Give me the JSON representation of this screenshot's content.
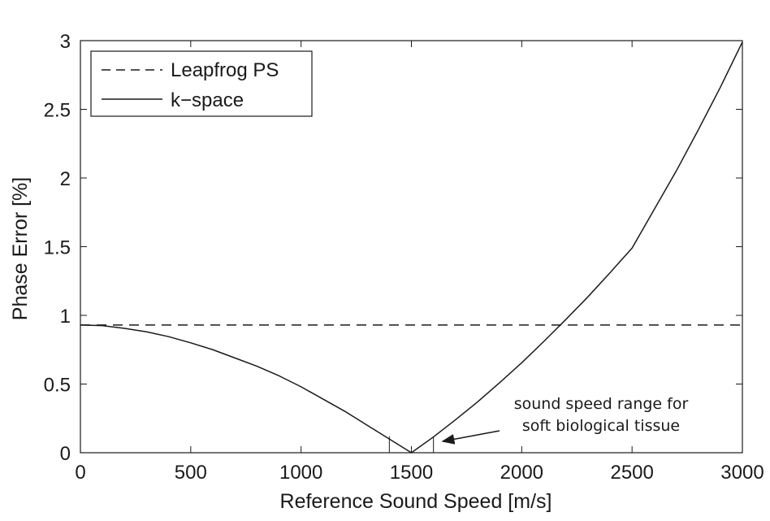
{
  "chart_data": {
    "type": "line",
    "xlabel": "Reference Sound Speed [m/s]",
    "ylabel": "Phase Error [%]",
    "xlim": [
      0,
      3000
    ],
    "ylim": [
      0,
      3
    ],
    "xticks": [
      0,
      500,
      1000,
      1500,
      2000,
      2500,
      3000
    ],
    "yticks": [
      0,
      0.5,
      1,
      1.5,
      2,
      2.5,
      3
    ],
    "ytick_labels": [
      "0",
      "0.5",
      "1",
      "1.5",
      "2",
      "2.5",
      "3"
    ],
    "grid": false,
    "legend_position": "top-left",
    "series": [
      {
        "name": "Leapfrog PS",
        "style": "dashed",
        "color": "#1a1a1a",
        "x": [
          0,
          3000
        ],
        "y": [
          0.93,
          0.93
        ]
      },
      {
        "name": "k−space",
        "style": "solid",
        "color": "#1a1a1a",
        "x": [
          0,
          100,
          200,
          300,
          400,
          500,
          600,
          700,
          800,
          900,
          1000,
          1100,
          1200,
          1300,
          1400,
          1500,
          1600,
          1700,
          1800,
          1900,
          2000,
          2100,
          2200,
          2300,
          2400,
          2500,
          2600,
          2700,
          2800,
          2900,
          3000
        ],
        "y": [
          0.93,
          0.925,
          0.905,
          0.88,
          0.845,
          0.8,
          0.75,
          0.69,
          0.63,
          0.56,
          0.48,
          0.39,
          0.3,
          0.2,
          0.1,
          0.0,
          0.115,
          0.24,
          0.37,
          0.51,
          0.655,
          0.81,
          0.97,
          1.135,
          1.31,
          1.49,
          1.77,
          2.05,
          2.35,
          2.66,
          2.99
        ]
      }
    ],
    "range_markers": [
      1400,
      1600
    ],
    "annotation": {
      "line1": "sound speed range for",
      "line2": "soft biological tissue"
    }
  }
}
